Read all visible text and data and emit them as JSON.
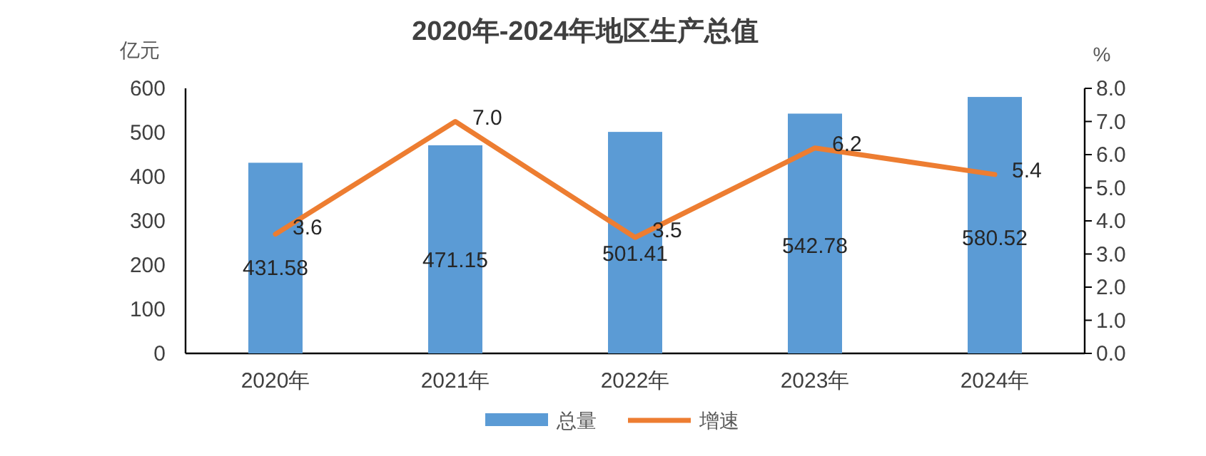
{
  "chart_data": {
    "type": "bar",
    "title": "2020年-2024年地区生产总值",
    "ylabel": "亿元",
    "y2label": "%",
    "categories": [
      "2020年",
      "2021年",
      "2022年",
      "2023年",
      "2024年"
    ],
    "series": [
      {
        "name": "总量",
        "color": "#5b9bd5",
        "values": [
          431.58,
          471.15,
          501.41,
          542.78,
          580.52
        ]
      },
      {
        "name": "增速",
        "type": "line",
        "axis": "y2",
        "color": "#ed7d31",
        "values": [
          3.6,
          7.0,
          3.5,
          6.2,
          5.4
        ],
        "value_labels": [
          "3.6",
          "7.0",
          "3.5",
          "6.2",
          "5.4"
        ]
      }
    ],
    "ylim": [
      0,
      600
    ],
    "yticks": [
      0,
      100,
      200,
      300,
      400,
      500,
      600
    ],
    "y2lim": [
      0,
      8
    ],
    "y2ticks": [
      {
        "value": 0,
        "label": "0.0"
      },
      {
        "value": 1,
        "label": "1.0"
      },
      {
        "value": 2,
        "label": "2.0"
      },
      {
        "value": 3,
        "label": "3.0"
      },
      {
        "value": 4,
        "label": "4.0"
      },
      {
        "value": 5,
        "label": "5.0"
      },
      {
        "value": 6,
        "label": "6.0"
      },
      {
        "value": 7,
        "label": "7.0"
      },
      {
        "value": 8,
        "label": "8.0"
      }
    ],
    "data_labels": true,
    "legend": "bottom",
    "grid": false,
    "marker": "none",
    "line_style": "solid"
  }
}
